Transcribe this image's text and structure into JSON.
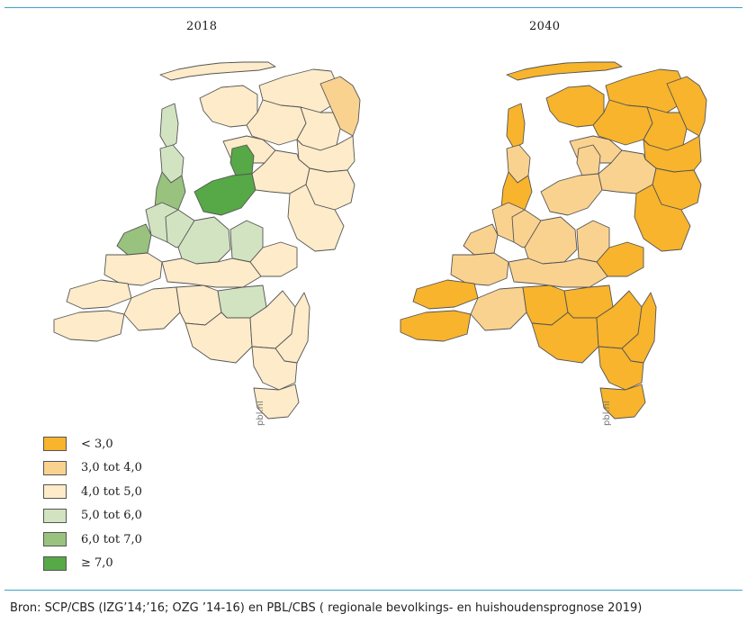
{
  "maps": [
    {
      "title": "2018",
      "watermark": "pbl.nl",
      "regions": {
        "wadden": 2,
        "groningen": 2,
        "delfzijl": 1,
        "friesland_w": 2,
        "friesland_c": 2,
        "drenthe_n": 2,
        "drenthe_s": 2,
        "nh_north": 3,
        "nh_middle": 3,
        "nh_west": 4,
        "noordoostpolder": 2,
        "lelystad": 5,
        "almere": 5,
        "overijssel_w": 2,
        "twente": 2,
        "achterhoek": 2,
        "leiden": 3,
        "haaglanden": 4,
        "utrecht_w": 3,
        "utrecht": 3,
        "arnhem": 3,
        "nijmegen": 2,
        "rijnmond": 2,
        "rivierenland": 2,
        "zeeland_n": 2,
        "zeeland_s": 2,
        "wbrabant": 2,
        "tilburg": 2,
        "denbosch": 3,
        "eindhoven": 2,
        "peel": 2,
        "limburg_n": 2,
        "limburg_m": 2,
        "limburg_z": 2
      }
    },
    {
      "title": "2040",
      "watermark": "pbl.nl",
      "regions": {
        "wadden": 0,
        "groningen": 0,
        "delfzijl": 0,
        "friesland_w": 0,
        "friesland_c": 0,
        "drenthe_n": 0,
        "drenthe_s": 0,
        "nh_north": 0,
        "nh_middle": 1,
        "nh_west": 0,
        "noordoostpolder": 1,
        "lelystad": 1,
        "almere": 1,
        "overijssel_w": 1,
        "twente": 0,
        "achterhoek": 0,
        "leiden": 1,
        "haaglanden": 1,
        "utrecht_w": 1,
        "utrecht": 1,
        "arnhem": 1,
        "nijmegen": 0,
        "rijnmond": 1,
        "rivierenland": 1,
        "zeeland_n": 0,
        "zeeland_s": 0,
        "wbrabant": 1,
        "tilburg": 0,
        "denbosch": 0,
        "eindhoven": 0,
        "peel": 0,
        "limburg_n": 0,
        "limburg_m": 0,
        "limburg_z": 0
      }
    }
  ],
  "legend": [
    {
      "label": "< 3,0",
      "color": "#f7b42c"
    },
    {
      "label": "3,0 tot 4,0",
      "color": "#fad290"
    },
    {
      "label": "4,0 tot 5,0",
      "color": "#fdebc9"
    },
    {
      "label": "5,0 tot 6,0",
      "color": "#d2e3c2"
    },
    {
      "label": "6,0 tot 7,0",
      "color": "#98c27e"
    },
    {
      "label": "≥ 7,0",
      "color": "#57a847"
    }
  ],
  "source": "Bron: SCP/CBS (IZG’14;’16; OZG ’14-16) en PBL/CBS ( regionale bevolkings- en huishoudensprognose 2019)"
}
